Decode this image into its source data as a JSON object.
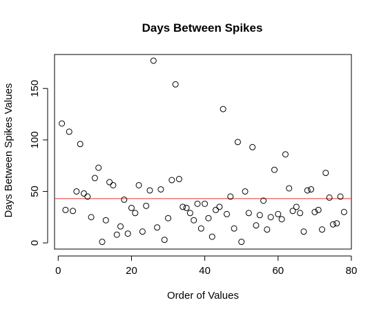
{
  "chart_data": {
    "type": "scatter",
    "title": "Days Between Spikes",
    "xlabel": "Order of Values",
    "ylabel": "Days Between Spikes Values",
    "xlim": [
      -1,
      80
    ],
    "ylim": [
      -6,
      183
    ],
    "xticks": [
      0,
      20,
      40,
      60,
      80
    ],
    "yticks": [
      0,
      50,
      100,
      150
    ],
    "grid": false,
    "hline": {
      "y": 43,
      "color": "#e8312f"
    },
    "points": [
      {
        "x": 1,
        "y": 116
      },
      {
        "x": 2,
        "y": 32
      },
      {
        "x": 3,
        "y": 108
      },
      {
        "x": 4,
        "y": 31
      },
      {
        "x": 5,
        "y": 50
      },
      {
        "x": 6,
        "y": 96
      },
      {
        "x": 7,
        "y": 48
      },
      {
        "x": 8,
        "y": 45
      },
      {
        "x": 9,
        "y": 25
      },
      {
        "x": 10,
        "y": 63
      },
      {
        "x": 11,
        "y": 73
      },
      {
        "x": 12,
        "y": 1
      },
      {
        "x": 13,
        "y": 22
      },
      {
        "x": 14,
        "y": 59
      },
      {
        "x": 15,
        "y": 56
      },
      {
        "x": 16,
        "y": 8
      },
      {
        "x": 17,
        "y": 16
      },
      {
        "x": 18,
        "y": 42
      },
      {
        "x": 19,
        "y": 9
      },
      {
        "x": 20,
        "y": 34
      },
      {
        "x": 21,
        "y": 29
      },
      {
        "x": 22,
        "y": 56
      },
      {
        "x": 23,
        "y": 11
      },
      {
        "x": 24,
        "y": 36
      },
      {
        "x": 25,
        "y": 51
      },
      {
        "x": 26,
        "y": 177
      },
      {
        "x": 27,
        "y": 15
      },
      {
        "x": 28,
        "y": 52
      },
      {
        "x": 29,
        "y": 3
      },
      {
        "x": 30,
        "y": 24
      },
      {
        "x": 31,
        "y": 61
      },
      {
        "x": 32,
        "y": 154
      },
      {
        "x": 33,
        "y": 62
      },
      {
        "x": 34,
        "y": 35
      },
      {
        "x": 35,
        "y": 34
      },
      {
        "x": 36,
        "y": 29
      },
      {
        "x": 37,
        "y": 22
      },
      {
        "x": 38,
        "y": 38
      },
      {
        "x": 39,
        "y": 14
      },
      {
        "x": 40,
        "y": 38
      },
      {
        "x": 41,
        "y": 24
      },
      {
        "x": 42,
        "y": 6
      },
      {
        "x": 43,
        "y": 32
      },
      {
        "x": 44,
        "y": 35
      },
      {
        "x": 45,
        "y": 130
      },
      {
        "x": 46,
        "y": 28
      },
      {
        "x": 47,
        "y": 45
      },
      {
        "x": 48,
        "y": 14
      },
      {
        "x": 49,
        "y": 98
      },
      {
        "x": 50,
        "y": 1
      },
      {
        "x": 51,
        "y": 50
      },
      {
        "x": 52,
        "y": 29
      },
      {
        "x": 53,
        "y": 93
      },
      {
        "x": 54,
        "y": 17
      },
      {
        "x": 55,
        "y": 27
      },
      {
        "x": 56,
        "y": 41
      },
      {
        "x": 57,
        "y": 13
      },
      {
        "x": 58,
        "y": 25
      },
      {
        "x": 59,
        "y": 71
      },
      {
        "x": 60,
        "y": 28
      },
      {
        "x": 61,
        "y": 23
      },
      {
        "x": 62,
        "y": 86
      },
      {
        "x": 63,
        "y": 53
      },
      {
        "x": 64,
        "y": 31
      },
      {
        "x": 65,
        "y": 35
      },
      {
        "x": 66,
        "y": 29
      },
      {
        "x": 67,
        "y": 11
      },
      {
        "x": 68,
        "y": 51
      },
      {
        "x": 69,
        "y": 52
      },
      {
        "x": 70,
        "y": 30
      },
      {
        "x": 71,
        "y": 32
      },
      {
        "x": 72,
        "y": 13
      },
      {
        "x": 73,
        "y": 68
      },
      {
        "x": 74,
        "y": 44
      },
      {
        "x": 75,
        "y": 18
      },
      {
        "x": 76,
        "y": 19
      },
      {
        "x": 77,
        "y": 45
      },
      {
        "x": 78,
        "y": 30
      }
    ]
  }
}
